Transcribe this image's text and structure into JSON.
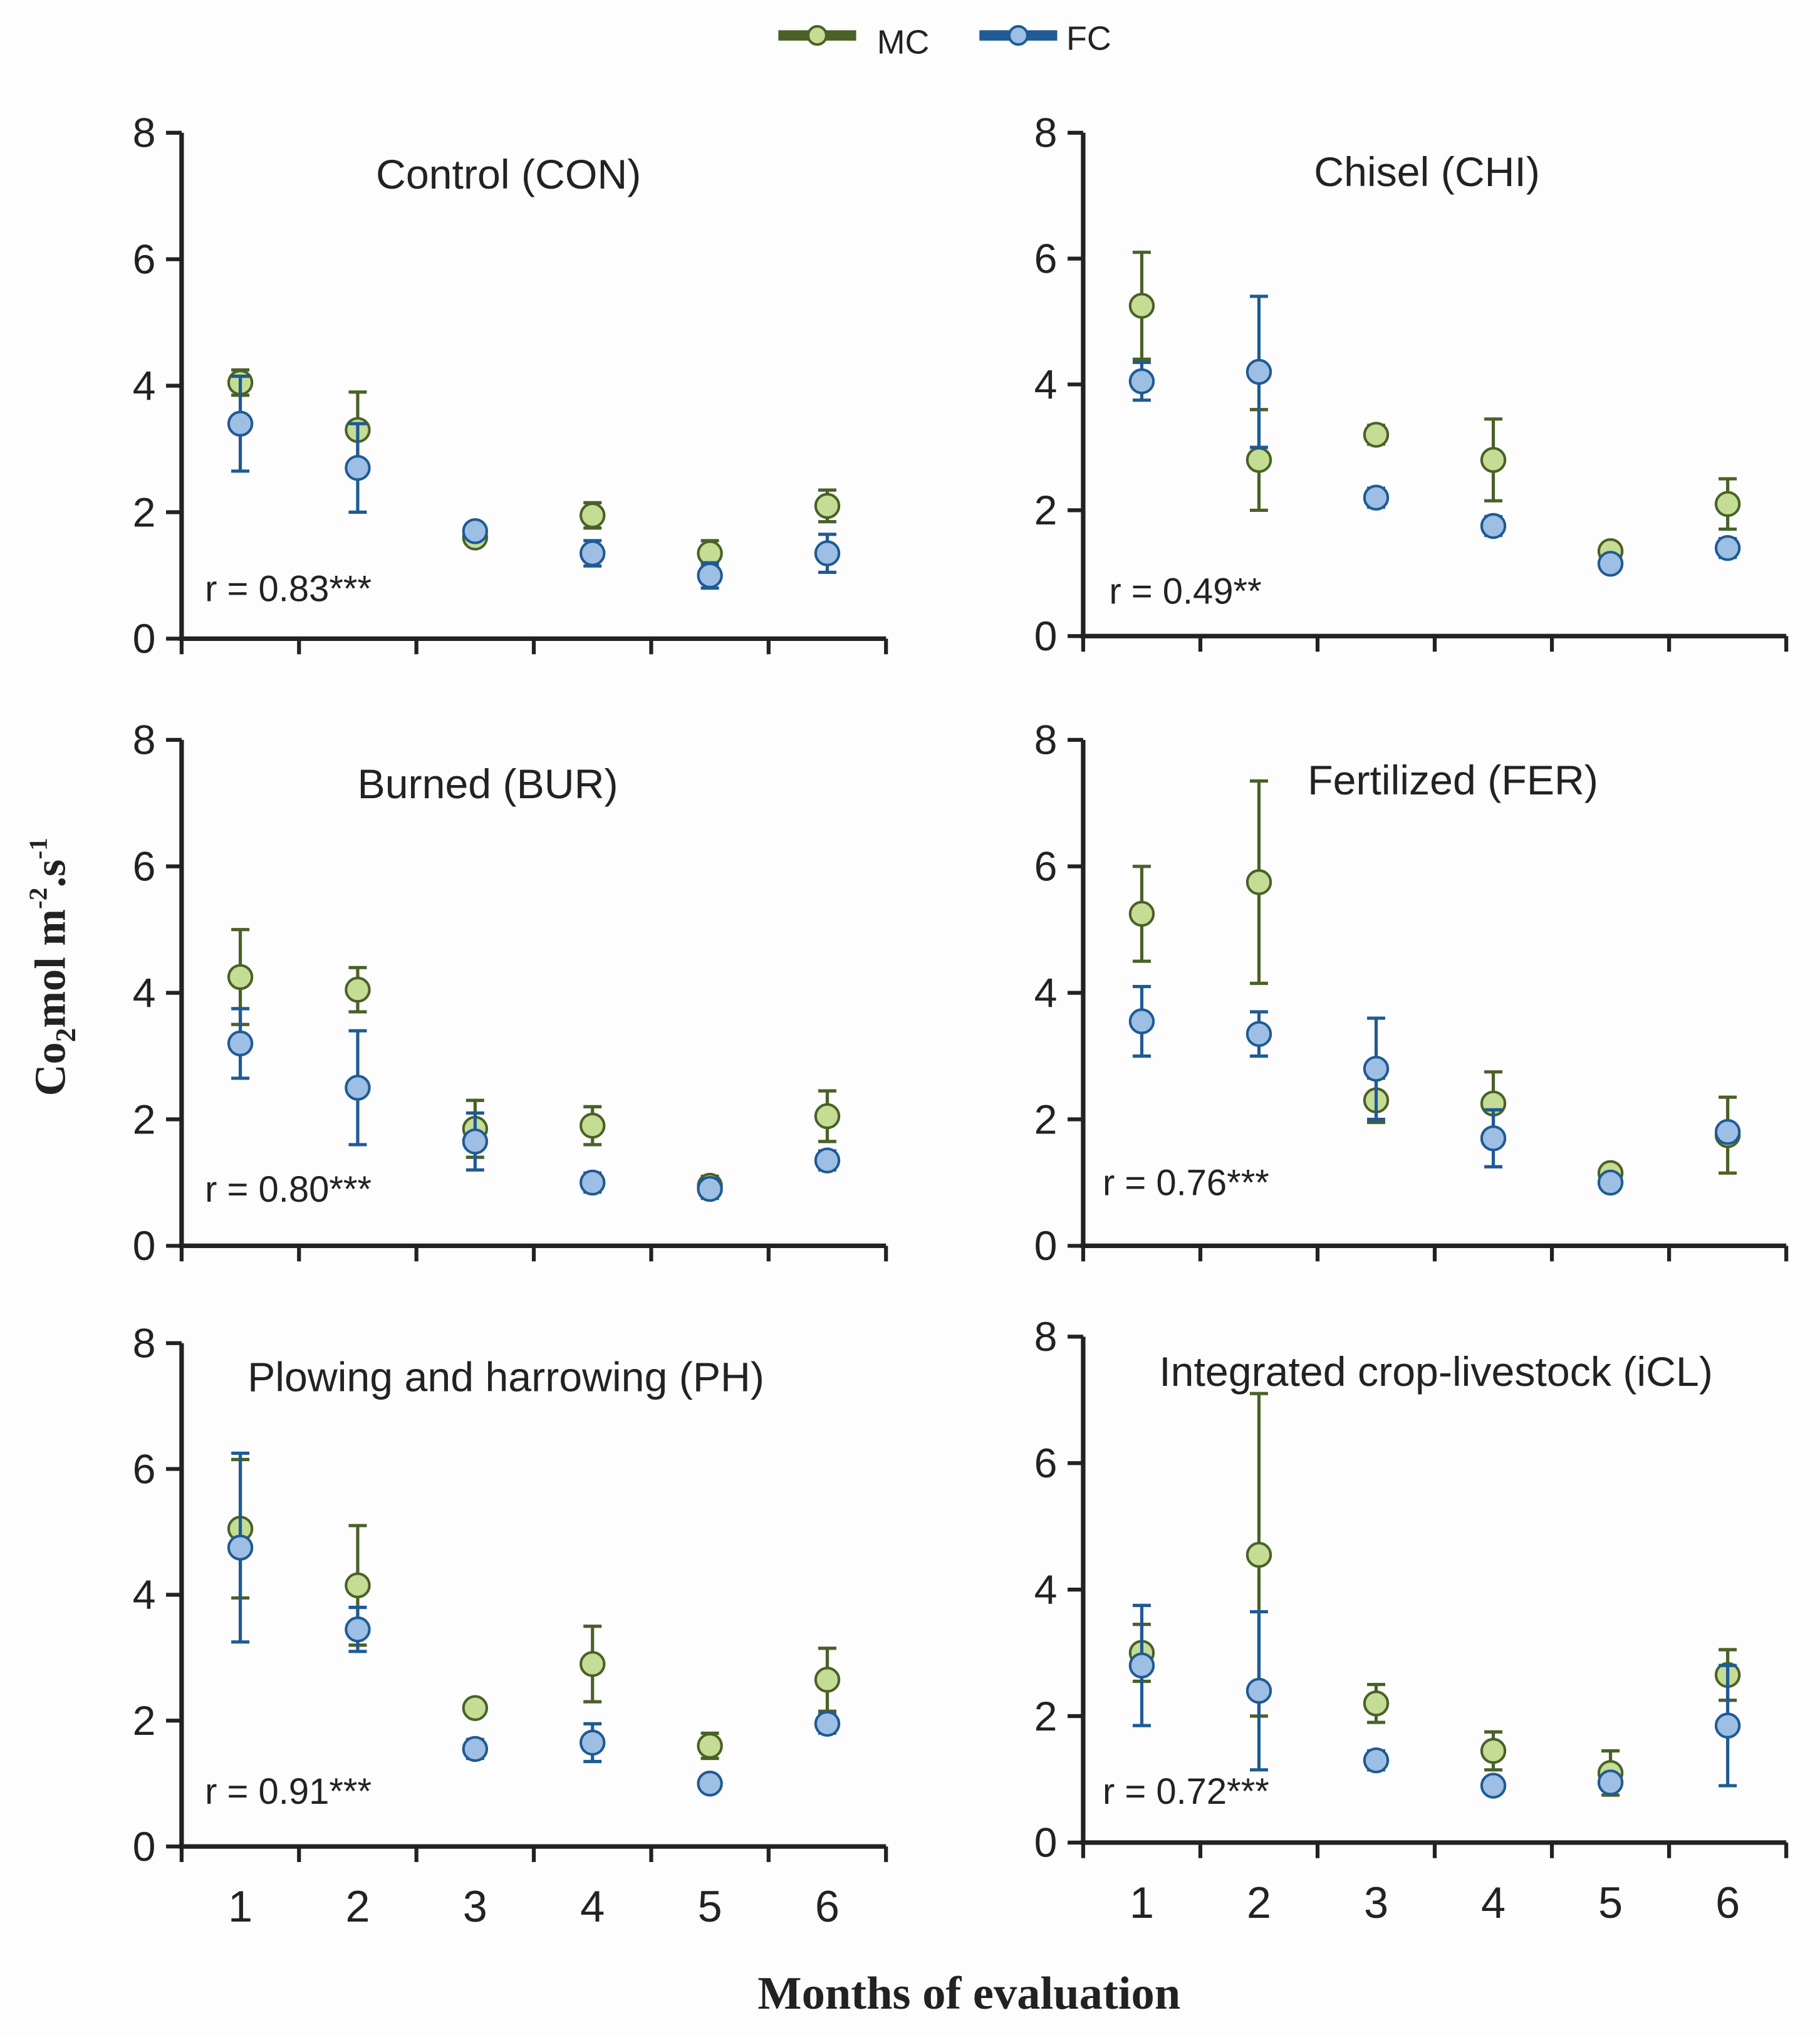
{
  "legend": [
    {
      "label": "MC",
      "color": "#4a6127",
      "fill": "#c5dc95"
    },
    {
      "label": "FC",
      "color": "#1f5a94",
      "fill": "#9dbfe3"
    }
  ],
  "xlabel": "Months of evaluation",
  "ylabel_parts": {
    "a": "Co",
    "sub": "2",
    "b": "mol m",
    "sup1": "-2",
    "c": ".s",
    "sup2": "-1"
  },
  "chart_data": [
    {
      "type": "scatter",
      "title": "Control (CON)",
      "annotation": "r = 0.83***",
      "x": [
        1,
        2,
        3,
        4,
        5,
        6
      ],
      "ylim": [
        0,
        8
      ],
      "yticks": [
        "0",
        "2",
        "4",
        "6",
        "8"
      ],
      "series": [
        {
          "name": "MC",
          "values": [
            4.05,
            3.3,
            1.6,
            1.95,
            1.35,
            2.1
          ],
          "err": [
            0.2,
            0.6,
            0.1,
            0.2,
            0.2,
            0.25
          ]
        },
        {
          "name": "FC",
          "values": [
            3.4,
            2.7,
            1.7,
            1.35,
            1.0,
            1.35
          ],
          "err": [
            0.75,
            0.7,
            0.1,
            0.2,
            0.2,
            0.3
          ]
        }
      ]
    },
    {
      "type": "scatter",
      "title": "Chisel (CHI)",
      "annotation": "r = 0.49**",
      "x": [
        1,
        2,
        3,
        4,
        5,
        6
      ],
      "ylim": [
        0,
        8
      ],
      "yticks": [
        "0",
        "2",
        "4",
        "6",
        "8"
      ],
      "series": [
        {
          "name": "MC",
          "values": [
            5.25,
            2.8,
            3.2,
            2.8,
            1.35,
            2.1
          ],
          "err": [
            0.85,
            0.8,
            0.15,
            0.65,
            0.1,
            0.4
          ]
        },
        {
          "name": "FC",
          "values": [
            4.05,
            4.2,
            2.2,
            1.75,
            1.15,
            1.4
          ],
          "err": [
            0.3,
            1.2,
            0.15,
            0.15,
            0.1,
            0.15
          ]
        }
      ]
    },
    {
      "type": "scatter",
      "title": "Burned (BUR)",
      "annotation": "r = 0.80***",
      "x": [
        1,
        2,
        3,
        4,
        5,
        6
      ],
      "ylim": [
        0,
        8
      ],
      "yticks": [
        "0",
        "2",
        "4",
        "6",
        "8"
      ],
      "series": [
        {
          "name": "MC",
          "values": [
            4.25,
            4.05,
            1.85,
            1.9,
            0.95,
            2.05
          ],
          "err": [
            0.75,
            0.35,
            0.45,
            0.3,
            0.15,
            0.4
          ]
        },
        {
          "name": "FC",
          "values": [
            3.2,
            2.5,
            1.65,
            1.0,
            0.9,
            1.35
          ],
          "err": [
            0.55,
            0.9,
            0.45,
            0.15,
            0.15,
            0.15
          ]
        }
      ]
    },
    {
      "type": "scatter",
      "title": "Fertilized (FER)",
      "annotation": "r = 0.76***",
      "x": [
        1,
        2,
        3,
        4,
        5,
        6
      ],
      "ylim": [
        0,
        8
      ],
      "yticks": [
        "0",
        "2",
        "4",
        "6",
        "8"
      ],
      "series": [
        {
          "name": "MC",
          "values": [
            5.25,
            5.75,
            2.3,
            2.25,
            1.15,
            1.75
          ],
          "err": [
            0.75,
            1.6,
            0.35,
            0.5,
            0.1,
            0.6
          ]
        },
        {
          "name": "FC",
          "values": [
            3.55,
            3.35,
            2.8,
            1.7,
            1.0,
            1.8
          ],
          "err": [
            0.55,
            0.35,
            0.8,
            0.45,
            0.1,
            0.1
          ]
        }
      ]
    },
    {
      "type": "scatter",
      "title": "Plowing and harrowing (PH)",
      "annotation": "r = 0.91***",
      "x": [
        1,
        2,
        3,
        4,
        5,
        6
      ],
      "ylim": [
        0,
        8
      ],
      "yticks": [
        "0",
        "2",
        "4",
        "6",
        "8"
      ],
      "xticks": [
        "1",
        "2",
        "3",
        "4",
        "5",
        "6"
      ],
      "series": [
        {
          "name": "MC",
          "values": [
            5.05,
            4.15,
            2.2,
            2.9,
            1.6,
            2.65
          ],
          "err": [
            1.1,
            0.95,
            0.1,
            0.6,
            0.2,
            0.5
          ]
        },
        {
          "name": "FC",
          "values": [
            4.75,
            3.45,
            1.55,
            1.65,
            1.0,
            1.95
          ],
          "err": [
            1.5,
            0.35,
            0.15,
            0.3,
            0.1,
            0.15
          ]
        }
      ]
    },
    {
      "type": "scatter",
      "title": "Integrated crop-livestock (iCL)",
      "annotation": "r = 0.72***",
      "x": [
        1,
        2,
        3,
        4,
        5,
        6
      ],
      "ylim": [
        0,
        8
      ],
      "yticks": [
        "0",
        "2",
        "4",
        "6",
        "8"
      ],
      "xticks": [
        "1",
        "2",
        "3",
        "4",
        "5",
        "6"
      ],
      "series": [
        {
          "name": "MC",
          "values": [
            3.0,
            4.55,
            2.2,
            1.45,
            1.1,
            2.65
          ],
          "err": [
            0.45,
            2.55,
            0.3,
            0.3,
            0.35,
            0.4
          ]
        },
        {
          "name": "FC",
          "values": [
            2.8,
            2.4,
            1.3,
            0.9,
            0.95,
            1.85
          ],
          "err": [
            0.95,
            1.25,
            0.15,
            0.1,
            0.1,
            0.95
          ]
        }
      ]
    }
  ]
}
